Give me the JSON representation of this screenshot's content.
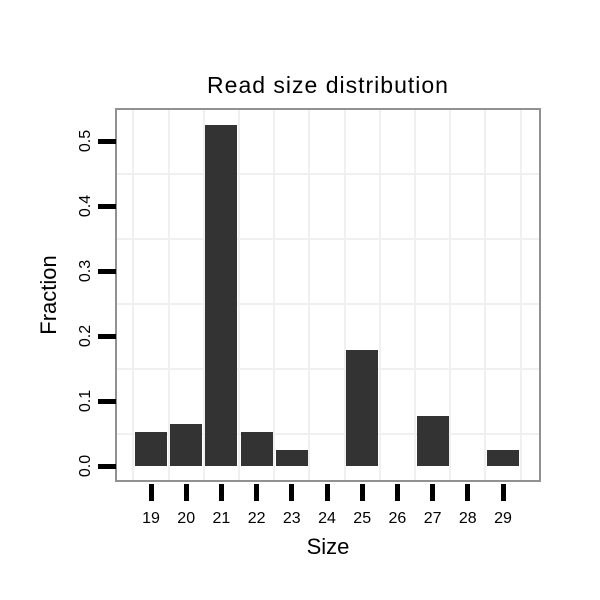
{
  "chart_data": {
    "type": "bar",
    "title": "Read size distribution",
    "xlabel": "Size",
    "ylabel": "Fraction",
    "categories": [
      "19",
      "20",
      "21",
      "22",
      "23",
      "24",
      "25",
      "26",
      "27",
      "28",
      "29"
    ],
    "values": [
      0.052,
      0.064,
      0.525,
      0.052,
      0.025,
      0,
      0.178,
      0,
      0.077,
      0,
      0.025
    ],
    "ytick_values": [
      0.0,
      0.1,
      0.2,
      0.3,
      0.4,
      0.5
    ],
    "ytick_labels": [
      "0.0",
      "0.1",
      "0.2",
      "0.3",
      "0.4",
      "0.5"
    ],
    "ylim": [
      0,
      0.55
    ],
    "grid": {
      "horizontal_minor_at": [
        0.05,
        0.15,
        0.25,
        0.35,
        0.45
      ],
      "vertical_minor_between_categories": true
    },
    "legend": "none",
    "colors": {
      "bar": "#333333",
      "gridline": "#f0f0f0",
      "panel_border": "#919191",
      "tick": "#000000",
      "text": "#000000",
      "background": "#ffffff"
    }
  }
}
